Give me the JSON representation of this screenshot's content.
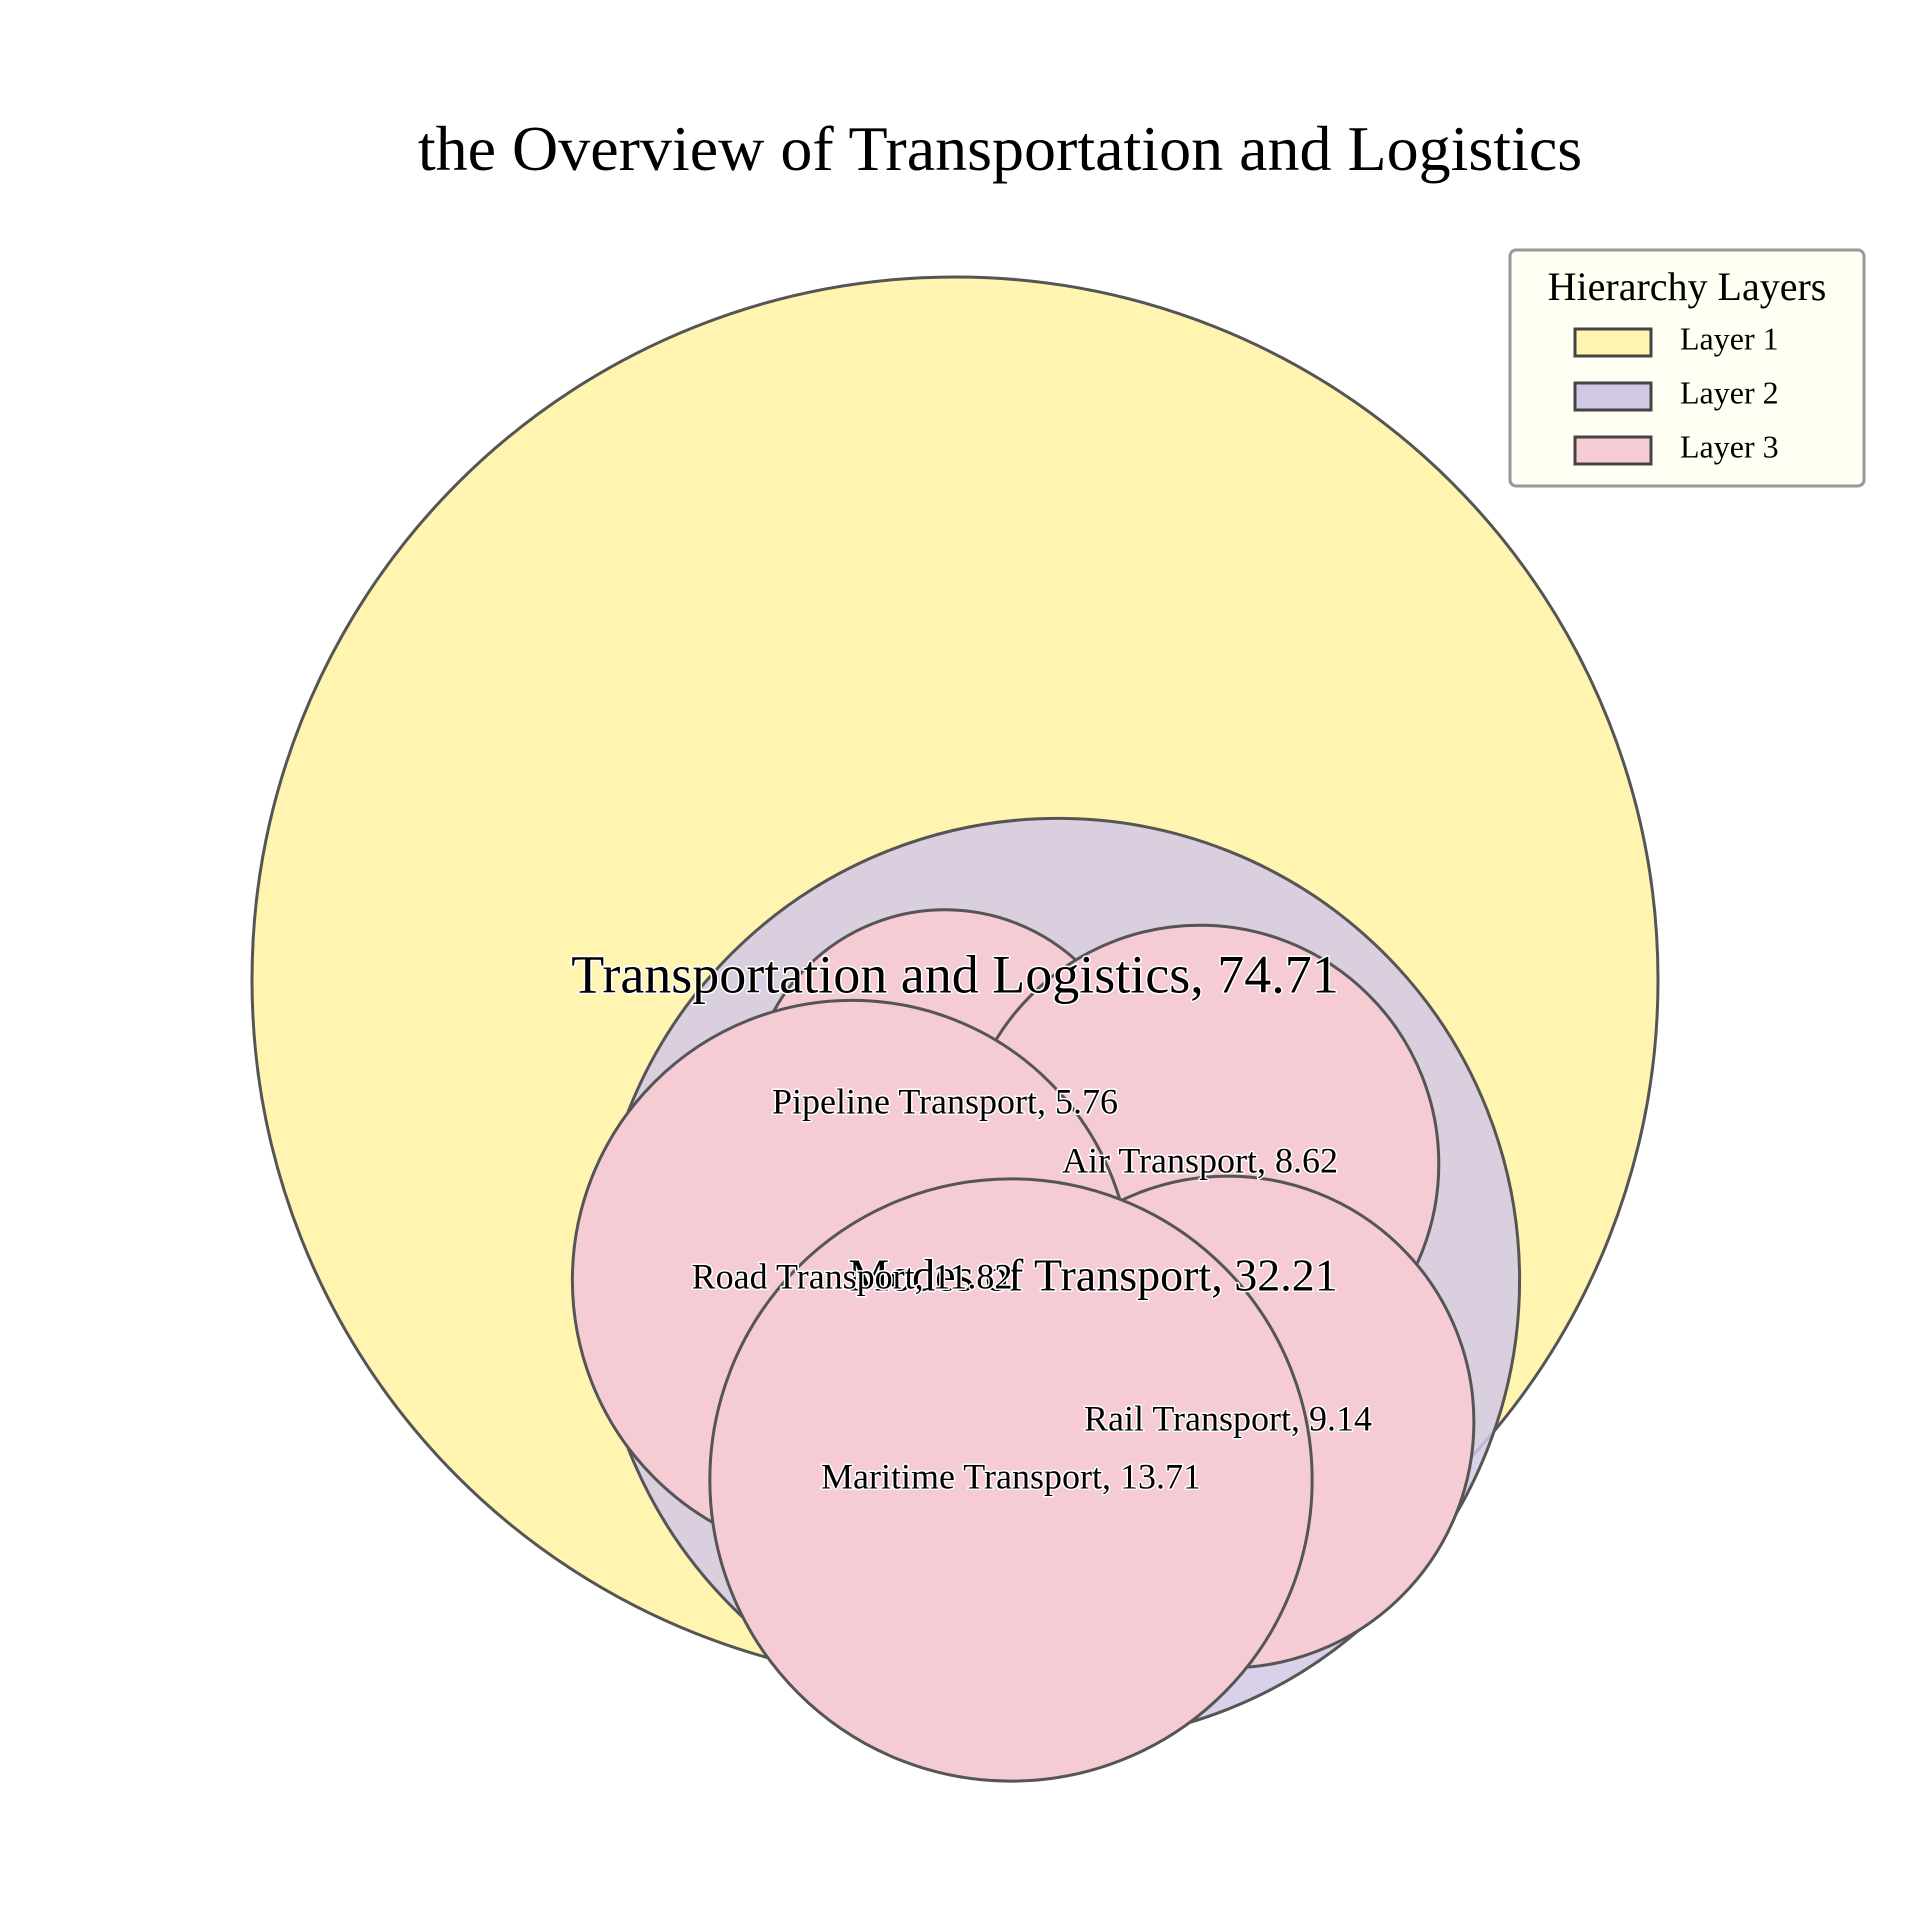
{
  "chart_data": {
    "type": "circle-packing",
    "title": "the Overview of Transportation and Logistics",
    "legend": {
      "title": "Hierarchy Layers",
      "placement": "top-right",
      "entries": [
        {
          "label": "Layer 1",
          "color": "#FFF5B0"
        },
        {
          "label": "Layer 2",
          "color": "#D2C8E6"
        },
        {
          "label": "Layer 3",
          "color": "#F6CCD4"
        }
      ]
    },
    "root": {
      "name": "Transportation and Logistics",
      "value": 74.71,
      "layer": 1,
      "label": "Transportation and Logistics, 74.71",
      "children": [
        {
          "name": "Modes of Transport",
          "value": 32.21,
          "layer": 2,
          "label": "Modes of Transport, 32.21",
          "children": [
            {
              "name": "Pipeline Transport",
              "value": 5.76,
              "layer": 3,
              "label": "Pipeline Transport, 5.76"
            },
            {
              "name": "Air Transport",
              "value": 8.62,
              "layer": 3,
              "label": "Air Transport, 8.62"
            },
            {
              "name": "Road Transport",
              "value": 11.82,
              "layer": 3,
              "label": "Road Transport, 11.82"
            },
            {
              "name": "Rail Transport",
              "value": 9.14,
              "layer": 3,
              "label": "Rail Transport, 9.14"
            },
            {
              "name": "Maritime Transport",
              "value": 13.71,
              "layer": 3,
              "label": "Maritime Transport, 13.71"
            }
          ]
        }
      ]
    },
    "colors": {
      "edge": "#555555",
      "legend_edge": "#444444",
      "legend_bg": "#FFFFF4"
    }
  }
}
